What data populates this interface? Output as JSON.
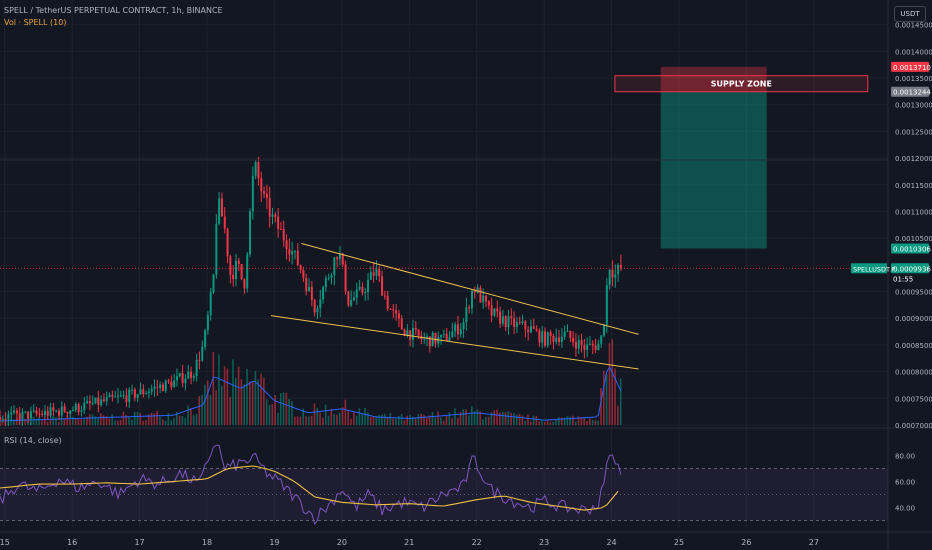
{
  "chart_data": {
    "type": "candlestick",
    "title": "SPELL / TetherUS PERPETUAL CONTRACT, 1h, BINANCE",
    "volume_label": "Vol · SPELL (10)",
    "quote_currency": "USDT",
    "symbol_label": "SPELLUSDT.P",
    "last_price": "0.0009936",
    "countdown": "01:55",
    "price_axis_ticks": [
      "0.0014500",
      "0.0014000",
      "0.0013500",
      "0.0013000",
      "0.0012500",
      "0.0012000",
      "0.0011500",
      "0.0011000",
      "0.0010500",
      "0.0009500",
      "0.0009000",
      "0.0008500",
      "0.0008000",
      "0.0007500",
      "0.0007000"
    ],
    "price_range": [
      0.0007,
      0.00147
    ],
    "price_labels": [
      {
        "value": "0.0013710",
        "price": 0.001371,
        "color": "#f23645"
      },
      {
        "value": "0.0013244",
        "price": 0.0013244,
        "color": "#787b86"
      },
      {
        "value": "0.0010306",
        "price": 0.0010306,
        "color": "#089981"
      },
      {
        "value": "0.0009936",
        "price": 0.0009936,
        "color": "#089981"
      }
    ],
    "x_axis_ticks": [
      {
        "label": "15",
        "day": 15
      },
      {
        "label": "16",
        "day": 16
      },
      {
        "label": "17",
        "day": 17
      },
      {
        "label": "18",
        "day": 18
      },
      {
        "label": "19",
        "day": 19
      },
      {
        "label": "20",
        "day": 20
      },
      {
        "label": "21",
        "day": 21
      },
      {
        "label": "22",
        "day": 22
      },
      {
        "label": "23",
        "day": 23
      },
      {
        "label": "24",
        "day": 24
      },
      {
        "label": "25",
        "day": 25
      },
      {
        "label": "26",
        "day": 26
      },
      {
        "label": "27",
        "day": 27
      }
    ],
    "x_range_days": [
      14.93,
      28.1
    ],
    "price_path_keypoints": [
      [
        14.93,
        0.000715
      ],
      [
        15.5,
        0.00072
      ],
      [
        16.0,
        0.00073
      ],
      [
        16.5,
        0.000745
      ],
      [
        17.0,
        0.00076
      ],
      [
        17.5,
        0.00078
      ],
      [
        17.8,
        0.0008
      ],
      [
        17.95,
        0.00085
      ],
      [
        18.05,
        0.00093
      ],
      [
        18.1,
        0.00098
      ],
      [
        18.15,
        0.00112
      ],
      [
        18.25,
        0.00108
      ],
      [
        18.35,
        0.00098
      ],
      [
        18.45,
        0.001
      ],
      [
        18.55,
        0.00096
      ],
      [
        18.7,
        0.00119
      ],
      [
        18.85,
        0.00112
      ],
      [
        19.0,
        0.00108
      ],
      [
        19.2,
        0.00104
      ],
      [
        19.4,
        0.00099
      ],
      [
        19.6,
        0.00092
      ],
      [
        19.8,
        0.00098
      ],
      [
        19.95,
        0.00103
      ],
      [
        20.1,
        0.00093
      ],
      [
        20.3,
        0.00095
      ],
      [
        20.5,
        0.00099
      ],
      [
        20.7,
        0.00092
      ],
      [
        20.9,
        0.00088
      ],
      [
        21.2,
        0.00086
      ],
      [
        21.5,
        0.00086
      ],
      [
        21.8,
        0.00089
      ],
      [
        21.95,
        0.00096
      ],
      [
        22.2,
        0.00091
      ],
      [
        22.5,
        0.00089
      ],
      [
        22.8,
        0.00088
      ],
      [
        23.0,
        0.00086
      ],
      [
        23.3,
        0.00087
      ],
      [
        23.6,
        0.000845
      ],
      [
        23.8,
        0.00085
      ],
      [
        23.87,
        0.00087
      ],
      [
        23.92,
        0.00095
      ],
      [
        23.97,
        0.001
      ],
      [
        24.05,
        0.00098
      ],
      [
        24.1,
        0.00099
      ],
      [
        24.15,
        0.000994
      ]
    ],
    "volume_keypoints": [
      [
        14.93,
        0.05
      ],
      [
        17.5,
        0.12
      ],
      [
        17.95,
        0.25
      ],
      [
        18.1,
        0.6
      ],
      [
        18.5,
        0.45
      ],
      [
        18.7,
        0.55
      ],
      [
        19.0,
        0.3
      ],
      [
        19.5,
        0.15
      ],
      [
        20.0,
        0.2
      ],
      [
        20.5,
        0.1
      ],
      [
        21.0,
        0.08
      ],
      [
        22.0,
        0.15
      ],
      [
        23.0,
        0.06
      ],
      [
        23.8,
        0.1
      ],
      [
        23.95,
        0.75
      ],
      [
        24.15,
        0.4
      ]
    ],
    "rsi": {
      "label": "RSI (14, close)",
      "range": [
        25,
        95
      ],
      "ticks": [
        "80.00",
        "60.00",
        "40.00"
      ],
      "levels": [
        70,
        50,
        30
      ],
      "keypoints": [
        [
          14.93,
          45
        ],
        [
          15.2,
          58
        ],
        [
          15.5,
          52
        ],
        [
          15.8,
          62
        ],
        [
          16.1,
          55
        ],
        [
          16.4,
          60
        ],
        [
          16.7,
          50
        ],
        [
          17.0,
          62
        ],
        [
          17.3,
          58
        ],
        [
          17.6,
          66
        ],
        [
          17.9,
          58
        ],
        [
          18.05,
          82
        ],
        [
          18.15,
          92
        ],
        [
          18.25,
          70
        ],
        [
          18.4,
          72
        ],
        [
          18.7,
          78
        ],
        [
          18.9,
          66
        ],
        [
          19.1,
          58
        ],
        [
          19.3,
          48
        ],
        [
          19.6,
          32
        ],
        [
          19.85,
          44
        ],
        [
          20.0,
          55
        ],
        [
          20.2,
          40
        ],
        [
          20.4,
          50
        ],
        [
          20.6,
          38
        ],
        [
          20.9,
          44
        ],
        [
          21.2,
          40
        ],
        [
          21.5,
          50
        ],
        [
          21.8,
          56
        ],
        [
          21.95,
          78
        ],
        [
          22.2,
          54
        ],
        [
          22.5,
          46
        ],
        [
          22.8,
          40
        ],
        [
          23.0,
          45
        ],
        [
          23.3,
          40
        ],
        [
          23.6,
          38
        ],
        [
          23.8,
          42
        ],
        [
          23.9,
          60
        ],
        [
          23.97,
          85
        ],
        [
          24.05,
          72
        ],
        [
          24.15,
          70
        ]
      ],
      "ma_keypoints": [
        [
          14.93,
          55
        ],
        [
          15.5,
          58
        ],
        [
          16.0,
          58
        ],
        [
          16.5,
          59
        ],
        [
          17.0,
          58
        ],
        [
          17.5,
          60
        ],
        [
          18.0,
          62
        ],
        [
          18.3,
          70
        ],
        [
          18.7,
          72
        ],
        [
          19.0,
          68
        ],
        [
          19.3,
          60
        ],
        [
          19.6,
          48
        ],
        [
          20.0,
          44
        ],
        [
          20.5,
          42
        ],
        [
          21.0,
          43
        ],
        [
          21.5,
          41
        ],
        [
          22.0,
          46
        ],
        [
          22.4,
          49
        ],
        [
          22.8,
          44
        ],
        [
          23.2,
          41
        ],
        [
          23.6,
          38
        ],
        [
          23.9,
          40
        ],
        [
          24.15,
          56
        ]
      ]
    },
    "annotations": [
      {
        "type": "rect",
        "label": "SUPPLY ZONE",
        "x0": 24.05,
        "x1": 27.8,
        "y0": 0.0013244,
        "y1": 0.0013544,
        "border": "#f23645"
      },
      {
        "type": "stop_zone",
        "x0": 24.73,
        "x1": 26.3,
        "y0": 0.0013244,
        "y1": 0.001371,
        "color": "#f23645"
      },
      {
        "type": "target_zone",
        "x0": 24.73,
        "x1": 26.3,
        "y0": 0.0010306,
        "y1": 0.0013244,
        "color": "#089981"
      },
      {
        "type": "trendline",
        "x0": 19.4,
        "y0": 0.00104,
        "x1": 24.4,
        "y1": 0.00087,
        "color": "#f0c050"
      },
      {
        "type": "trendline",
        "x0": 18.95,
        "y0": 0.000905,
        "x1": 24.4,
        "y1": 0.000805,
        "color": "#f0c050"
      }
    ],
    "grid": true,
    "up_color": "#089981",
    "down_color": "#f23645"
  }
}
